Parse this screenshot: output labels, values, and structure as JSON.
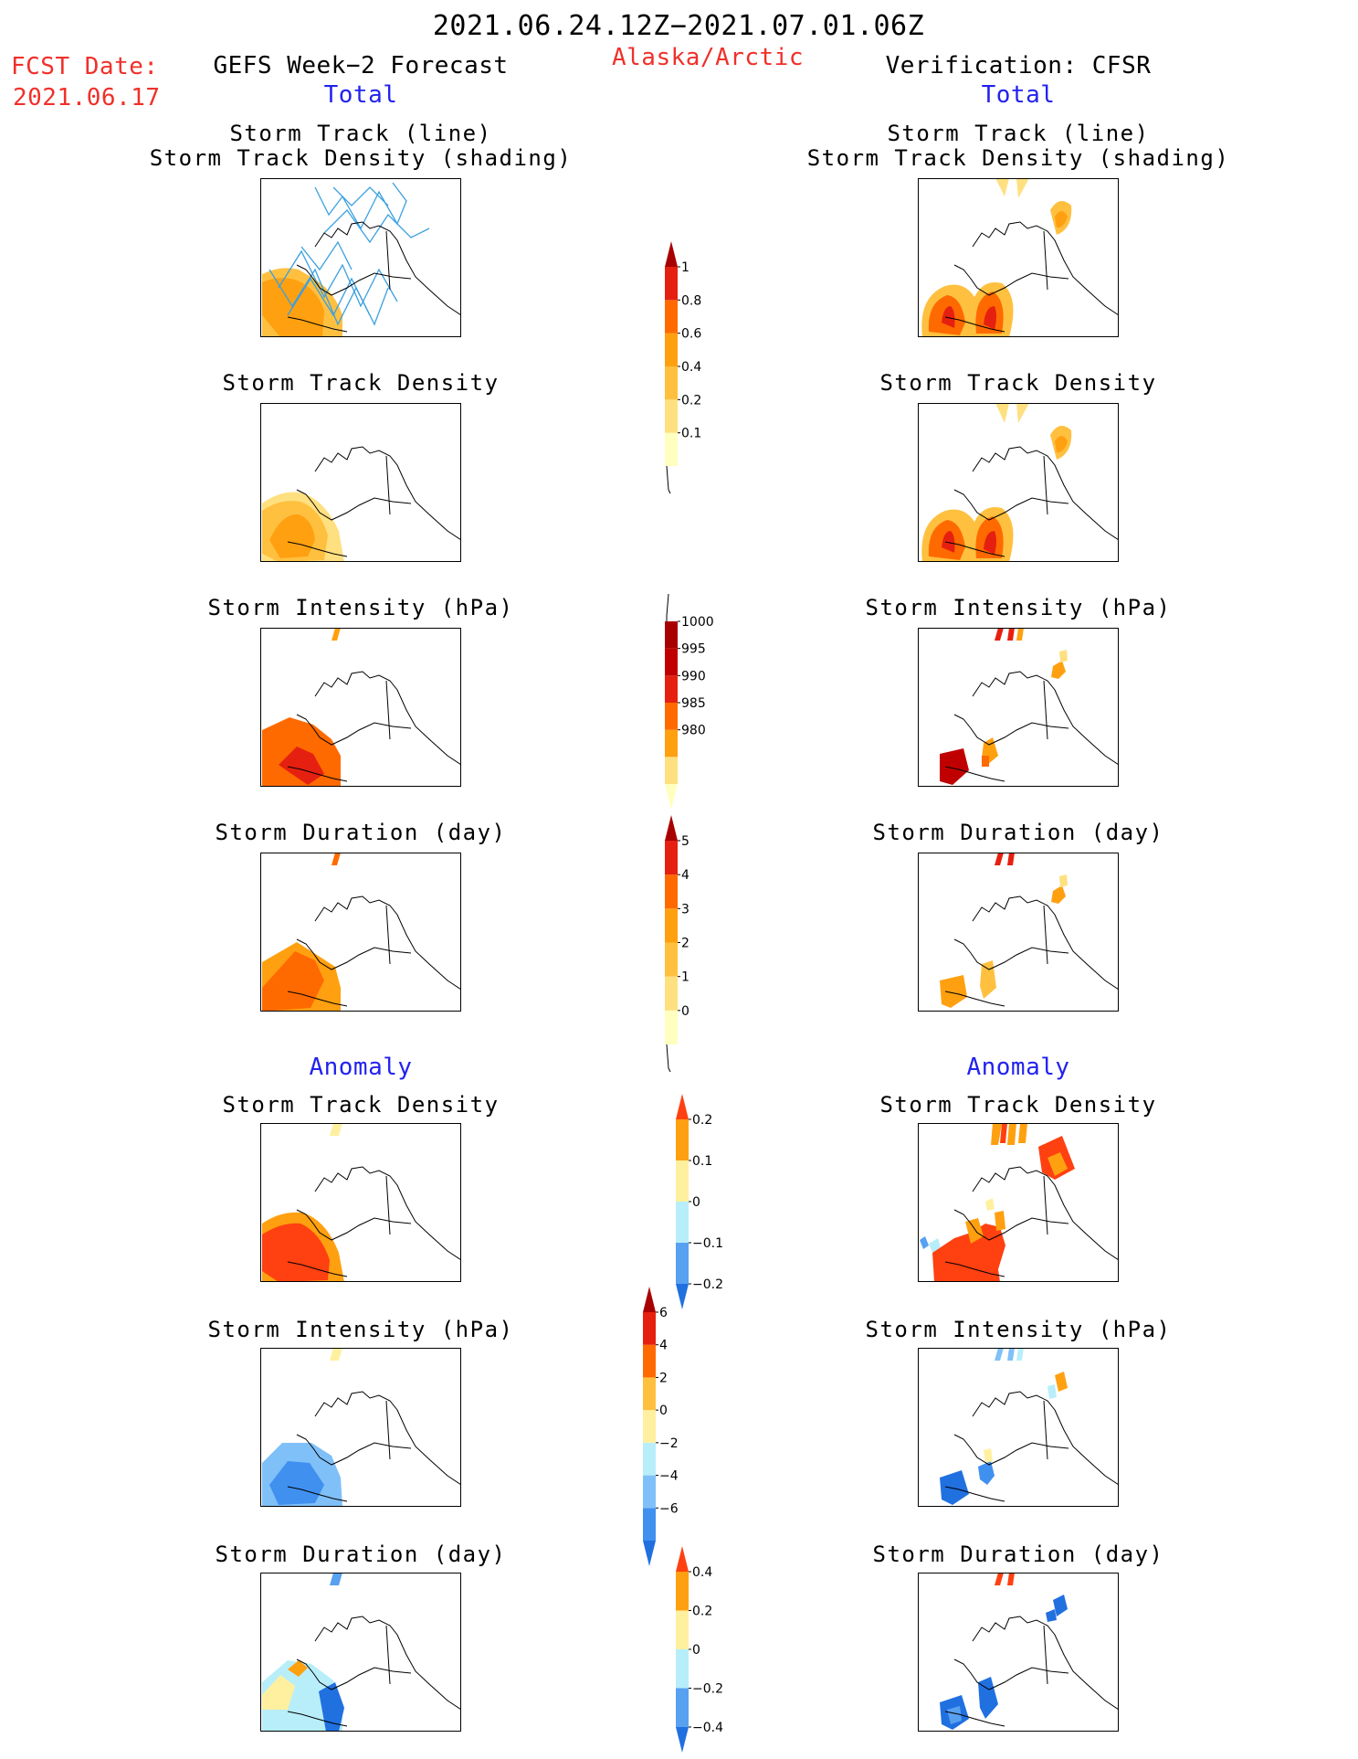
{
  "header": {
    "title": "2021.06.24.12Z−2021.07.01.06Z",
    "region": "Alaska/Arctic",
    "fcst_label": "FCST Date:",
    "fcst_date": "2021.06.17",
    "left_title": "GEFS Week−2 Forecast",
    "right_title": "Verification: CFSR",
    "total_label": "Total",
    "anomaly_label": "Anomaly"
  },
  "panels": {
    "track_line": "Storm Track (line)",
    "track_shading": "Storm Track Density (shading)",
    "density": "Storm Track Density",
    "intensity": "Storm Intensity (hPa)",
    "duration": "Storm Duration (day)"
  },
  "colorbars": {
    "density_total": {
      "colors": [
        "#ffffc0",
        "#ffe080",
        "#ffc040",
        "#ffa010",
        "#ff6a00",
        "#e62010",
        "#a80000"
      ],
      "labels": [
        "0.1",
        "0.2",
        "0.4",
        "0.6",
        "0.8",
        "1"
      ]
    },
    "intensity_total": {
      "colors": [
        "#ffffc0",
        "#ffe080",
        "#ffa010",
        "#ff6a00",
        "#e62010",
        "#c00000",
        "#a80000"
      ],
      "labels": [
        "1000",
        "995",
        "990",
        "985",
        "980"
      ]
    },
    "duration_total": {
      "colors": [
        "#ffffc0",
        "#ffe080",
        "#ffc040",
        "#ffa010",
        "#ff6a00",
        "#e62010",
        "#a80000"
      ],
      "labels": [
        "0",
        "1",
        "2",
        "3",
        "4",
        "5"
      ]
    },
    "density_anom": {
      "colors": [
        "#2070e0",
        "#58a0f0",
        "#b8eefa",
        "#fff0a0",
        "#ffa010",
        "#ff4010"
      ],
      "labels": [
        "0.2",
        "0.1",
        "0",
        "−0.1",
        "−0.2"
      ]
    },
    "intensity_anom": {
      "colors": [
        "#2070e0",
        "#4090f0",
        "#80c0f8",
        "#b8eefa",
        "#fff0a0",
        "#ffc040",
        "#ff6a00",
        "#e62010",
        "#a80000"
      ],
      "labels": [
        "6",
        "4",
        "2",
        "0",
        "−2",
        "−4",
        "−6"
      ]
    },
    "duration_anom": {
      "colors": [
        "#2070e0",
        "#58a0f0",
        "#b8eefa",
        "#fff0a0",
        "#ffa010",
        "#ff4010"
      ],
      "labels": [
        "0.4",
        "0.2",
        "0",
        "−0.2",
        "−0.4"
      ]
    }
  }
}
